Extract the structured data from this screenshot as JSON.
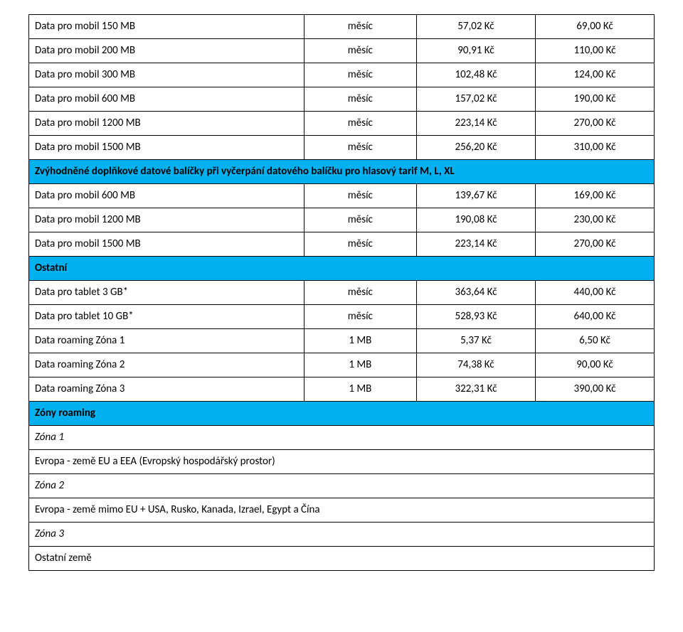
{
  "colors": {
    "section_bg": "#00b0f0",
    "section_fg": "#000000",
    "border": "#000000",
    "bg": "#ffffff"
  },
  "columns": {
    "name_width": "44%",
    "unit_width": "18%",
    "p1_width": "19%",
    "p2_width": "19%"
  },
  "rows": [
    {
      "type": "data",
      "name": "Data pro mobil 150 MB",
      "unit": "měsíc",
      "p1": "57,02 Kč",
      "p2": "69,00 Kč"
    },
    {
      "type": "data",
      "name": "Data pro mobil 200 MB",
      "unit": "měsíc",
      "p1": "90,91 Kč",
      "p2": "110,00 Kč"
    },
    {
      "type": "data",
      "name": "Data pro mobil 300 MB",
      "unit": "měsíc",
      "p1": "102,48 Kč",
      "p2": "124,00 Kč"
    },
    {
      "type": "data",
      "name": "Data pro mobil 600 MB",
      "unit": "měsíc",
      "p1": "157,02 Kč",
      "p2": "190,00 Kč"
    },
    {
      "type": "data",
      "name": "Data pro mobil 1200 MB",
      "unit": "měsíc",
      "p1": "223,14 Kč",
      "p2": "270,00 Kč"
    },
    {
      "type": "data",
      "name": "Data pro mobil 1500 MB",
      "unit": "měsíc",
      "p1": "256,20 Kč",
      "p2": "310,00 Kč"
    },
    {
      "type": "section",
      "text": "Zvýhodněné doplňkové datové balíčky při vyčerpání datového balíčku pro hlasový tarif M, L, XL"
    },
    {
      "type": "data",
      "name": "Data pro mobil 600 MB",
      "unit": "měsíc",
      "p1": "139,67 Kč",
      "p2": "169,00 Kč"
    },
    {
      "type": "data",
      "name": "Data pro mobil 1200 MB",
      "unit": "měsíc",
      "p1": "190,08 Kč",
      "p2": "230,00 Kč"
    },
    {
      "type": "data",
      "name": "Data pro mobil 1500 MB",
      "unit": "měsíc",
      "p1": "223,14 Kč",
      "p2": "270,00 Kč"
    },
    {
      "type": "section",
      "text": "Ostatní"
    },
    {
      "type": "data",
      "name": "Data pro tablet 3 GB*",
      "unit": "měsíc",
      "p1": "363,64 Kč",
      "p2": "440,00 Kč"
    },
    {
      "type": "data",
      "name": "Data pro tablet 10 GB*",
      "unit": "měsíc",
      "p1": "528,93 Kč",
      "p2": "640,00 Kč"
    },
    {
      "type": "data",
      "name": "Data roaming Zóna 1",
      "unit": "1 MB",
      "p1": "5,37 Kč",
      "p2": "6,50 Kč"
    },
    {
      "type": "data",
      "name": "Data roaming Zóna 2",
      "unit": "1 MB",
      "p1": "74,38 Kč",
      "p2": "90,00 Kč"
    },
    {
      "type": "data",
      "name": "Data roaming Zóna 3",
      "unit": "1 MB",
      "p1": "322,31 Kč",
      "p2": "390,00 Kč"
    },
    {
      "type": "section",
      "text": "Zóny roaming"
    },
    {
      "type": "label",
      "text": "Zóna 1"
    },
    {
      "type": "plain",
      "text": "Evropa - země EU a EEA (Evropský hospodářský prostor)"
    },
    {
      "type": "label",
      "text": "Zóna 2"
    },
    {
      "type": "plain",
      "text": "Evropa - země mimo EU + USA, Rusko, Kanada, Izrael, Egypt a Čína"
    },
    {
      "type": "label",
      "text": "Zóna 3"
    },
    {
      "type": "plain",
      "text": "Ostatní země"
    }
  ]
}
